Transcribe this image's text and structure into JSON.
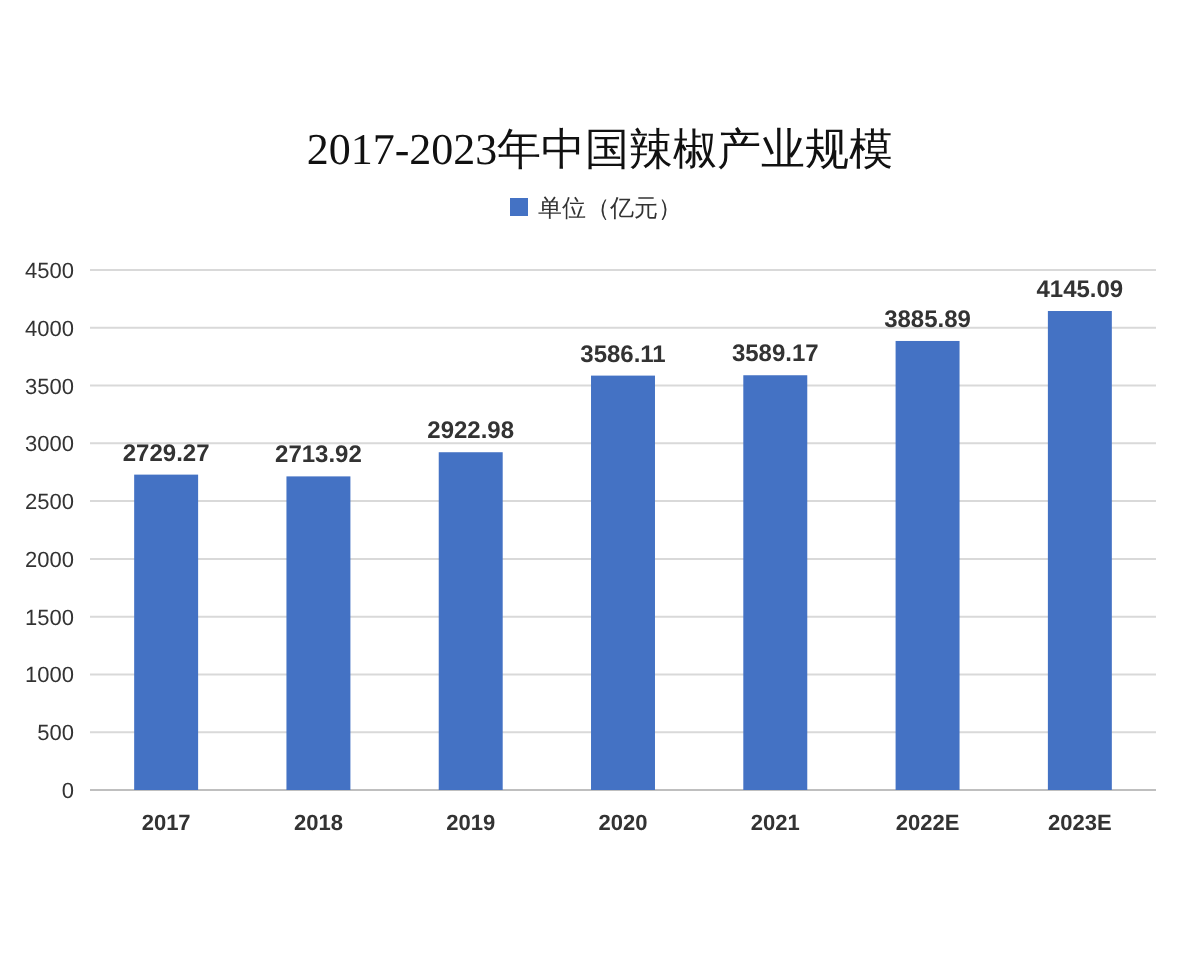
{
  "chart_data": {
    "type": "bar",
    "title": "2017-2023年中国辣椒产业规模",
    "categories": [
      "2017",
      "2018",
      "2019",
      "2020",
      "2021",
      "2022E",
      "2023E"
    ],
    "series": [
      {
        "name": "单位（亿元）",
        "color": "#4472c4",
        "values": [
          2729.27,
          2713.92,
          2922.98,
          3586.11,
          3589.17,
          3885.89,
          4145.09
        ]
      }
    ],
    "ylim": [
      0,
      4500
    ],
    "yticks": [
      0,
      500,
      1000,
      1500,
      2000,
      2500,
      3000,
      3500,
      4000,
      4500
    ],
    "grid": "y",
    "legend": "top",
    "data_labels": true
  }
}
